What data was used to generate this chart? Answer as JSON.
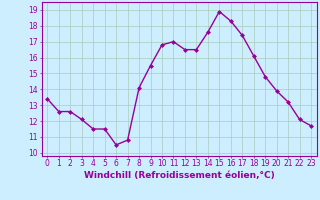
{
  "x": [
    0,
    1,
    2,
    3,
    4,
    5,
    6,
    7,
    8,
    9,
    10,
    11,
    12,
    13,
    14,
    15,
    16,
    17,
    18,
    19,
    20,
    21,
    22,
    23
  ],
  "y": [
    13.4,
    12.6,
    12.6,
    12.1,
    11.5,
    11.5,
    10.5,
    10.8,
    14.1,
    15.5,
    16.8,
    17.0,
    16.5,
    16.5,
    17.6,
    18.9,
    18.3,
    17.4,
    16.1,
    14.8,
    13.9,
    13.2,
    12.1,
    11.7
  ],
  "line_color": "#990099",
  "marker": "D",
  "marker_size": 2.0,
  "linewidth": 1.0,
  "xlabel": "Windchill (Refroidissement éolien,°C)",
  "xlabel_fontsize": 6.5,
  "xlim": [
    -0.5,
    23.5
  ],
  "ylim": [
    9.8,
    19.5
  ],
  "yticks": [
    10,
    11,
    12,
    13,
    14,
    15,
    16,
    17,
    18,
    19
  ],
  "xticks": [
    0,
    1,
    2,
    3,
    4,
    5,
    6,
    7,
    8,
    9,
    10,
    11,
    12,
    13,
    14,
    15,
    16,
    17,
    18,
    19,
    20,
    21,
    22,
    23
  ],
  "xtick_labels": [
    "0",
    "1",
    "2",
    "3",
    "4",
    "5",
    "6",
    "7",
    "8",
    "9",
    "10",
    "11",
    "12",
    "13",
    "14",
    "15",
    "16",
    "17",
    "18",
    "19",
    "20",
    "21",
    "22",
    "23"
  ],
  "background_color": "#cceeff",
  "grid_color": "#aaccbb",
  "tick_color": "#990099",
  "label_color": "#990099",
  "tick_fontsize": 5.5,
  "spine_color": "#990099"
}
